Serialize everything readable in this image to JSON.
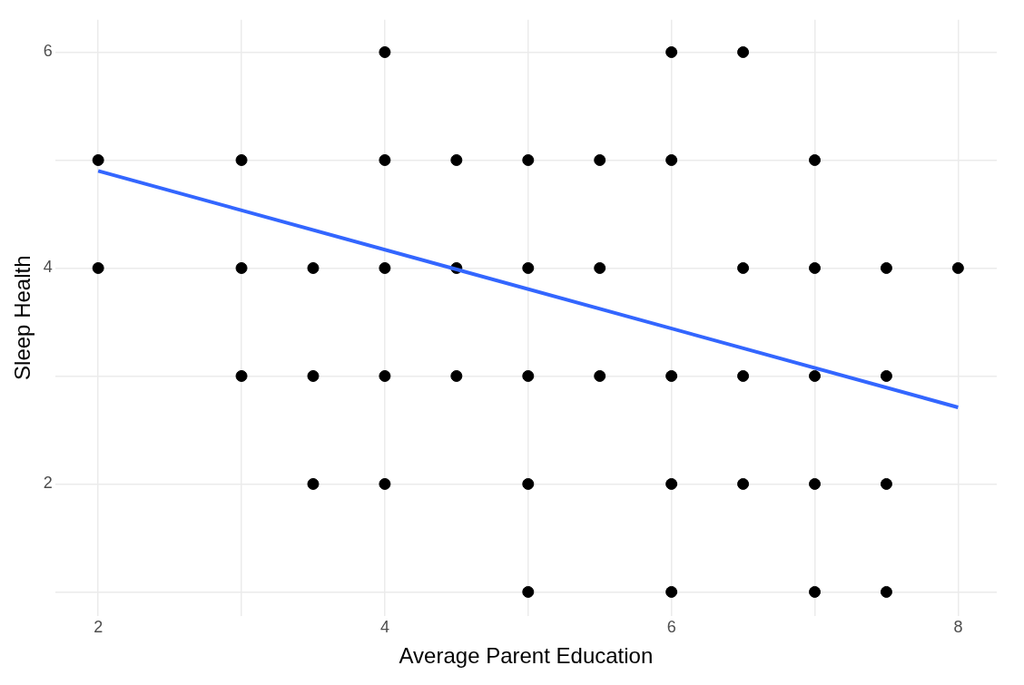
{
  "chart_data": {
    "type": "scatter",
    "xlabel": "Average Parent Education",
    "ylabel": "Sleep Health",
    "xlim": [
      1.7,
      8.27
    ],
    "ylim": [
      0.78,
      6.3
    ],
    "xticks": [
      2,
      {
        "value": 3,
        "label": null
      },
      4,
      {
        "value": 5,
        "label": null
      },
      6,
      {
        "value": 7,
        "label": null
      },
      8
    ],
    "yticks": [
      {
        "value": 1,
        "label": null
      },
      2,
      {
        "value": 3,
        "label": null
      },
      4,
      {
        "value": 5,
        "label": null
      },
      6
    ],
    "grid": true,
    "legend": false,
    "series": [
      {
        "marker": "circle",
        "color": "#000000",
        "x": [
          4,
          6,
          6.5,
          2,
          3,
          4,
          4.5,
          5,
          5.5,
          6,
          7,
          2,
          3,
          3.5,
          4,
          4.5,
          5,
          5.5,
          6.5,
          7,
          7.5,
          8,
          3,
          3.5,
          4,
          4.5,
          5,
          5.5,
          6,
          6.5,
          7,
          7.5,
          3.5,
          4,
          5,
          6,
          6.5,
          7,
          7.5,
          5,
          6,
          7,
          7.5
        ],
        "values": [
          6,
          6,
          6,
          5,
          5,
          5,
          5,
          5,
          5,
          5,
          5,
          4,
          4,
          4,
          4,
          4,
          4,
          4,
          4,
          4,
          4,
          4,
          3,
          3,
          3,
          3,
          3,
          3,
          3,
          3,
          3,
          3,
          2,
          2,
          2,
          2,
          2,
          2,
          2,
          1,
          1,
          1,
          1
        ]
      },
      {
        "type": "line",
        "marker": "none",
        "color": "#3366ff",
        "x": [
          2,
          8
        ],
        "values": [
          4.9,
          2.71
        ]
      }
    ]
  }
}
